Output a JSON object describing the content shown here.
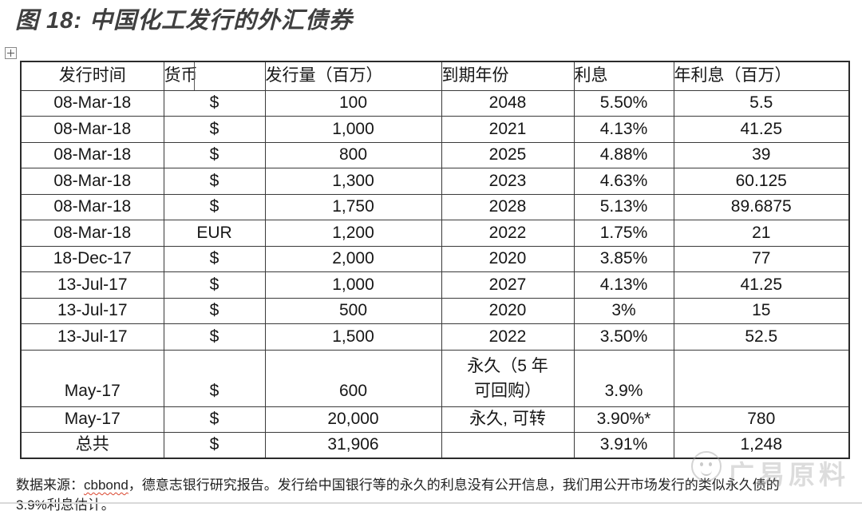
{
  "title": "图 18: 中国化工发行的外汇债券",
  "table": {
    "columns": [
      "发行时间",
      "货币",
      "发行量（百万）",
      "到期年份",
      "利息",
      "年利息（百万）"
    ],
    "rows": [
      [
        "08-Mar-18",
        "$",
        "100",
        "2048",
        "5.50%",
        "5.5"
      ],
      [
        "08-Mar-18",
        "$",
        "1,000",
        "2021",
        "4.13%",
        "41.25"
      ],
      [
        "08-Mar-18",
        "$",
        "800",
        "2025",
        "4.88%",
        "39"
      ],
      [
        "08-Mar-18",
        "$",
        "1,300",
        "2023",
        "4.63%",
        "60.125"
      ],
      [
        "08-Mar-18",
        "$",
        "1,750",
        "2028",
        "5.13%",
        "89.6875"
      ],
      [
        "08-Mar-18",
        "EUR",
        "1,200",
        "2022",
        "1.75%",
        "21"
      ],
      [
        "18-Dec-17",
        "$",
        "2,000",
        "2020",
        "3.85%",
        "77"
      ],
      [
        "13-Jul-17",
        "$",
        "1,000",
        "2027",
        "4.13%",
        "41.25"
      ],
      [
        "13-Jul-17",
        "$",
        "500",
        "2020",
        "3%",
        "15"
      ],
      [
        "13-Jul-17",
        "$",
        "1,500",
        "2022",
        "3.50%",
        "52.5"
      ],
      [
        "May-17",
        "$",
        "600",
        "永久（5 年\n可回购）",
        "3.9%",
        ""
      ],
      [
        "May-17",
        "$",
        "20,000",
        "永久, 可转",
        "3.90%*",
        "780"
      ],
      [
        "总共",
        "$",
        "31,906",
        "",
        "3.91%",
        "1,248"
      ]
    ]
  },
  "footnote": {
    "source_label": "数据来源：",
    "source_name": "cbbond",
    "line1_rest": "，德意志银行研究报告。发行给中国银行等的永久的利息没有公开信息，我们用公开市场发行的类似永久债的",
    "line2": "3.9%利息估计。"
  },
  "watermark": {
    "text": "广易原料"
  },
  "icons": {
    "table_handle": "table-move-handle-icon",
    "watermark_face": "smiley-face-icon"
  },
  "colors": {
    "title": "#3f3f3f",
    "table_border": "#3a3a3a",
    "spellcheck_squiggle": "#d9442c",
    "watermark": "#919191"
  }
}
